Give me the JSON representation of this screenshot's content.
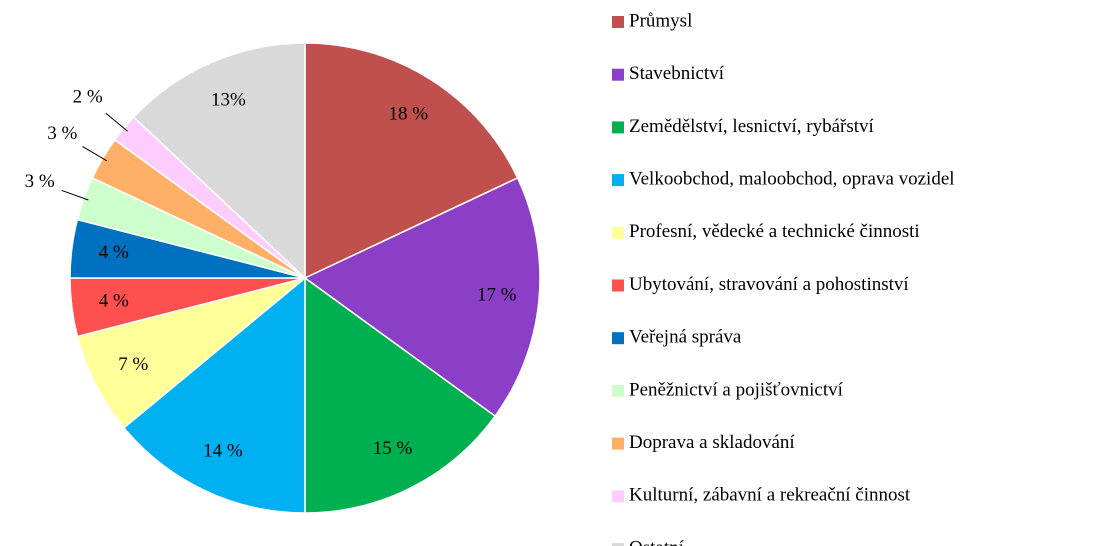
{
  "chart_data": {
    "type": "pie",
    "categories": [
      "Průmysl",
      "Stavebnictví",
      "Zemědělství, lesnictví, rybářství",
      "Velkoobchod, maloobchod, oprava vozidel",
      "Profesní, vědecké a technické činnosti",
      "Ubytování, stravování a pohostinství",
      "Veřejná správa",
      "Peněžnictví a pojišťovnictví",
      "Doprava a skladování",
      "Kulturní, zábavní a rekreační činnost",
      "Ostatní"
    ],
    "values": [
      18,
      17,
      15,
      14,
      7,
      4,
      4,
      3,
      3,
      2,
      13
    ],
    "value_labels": [
      "18 %",
      "17 %",
      "15 %",
      "14 %",
      "7 %",
      "4 %",
      "4 %",
      "3 %",
      "3 %",
      "2 %",
      "13%"
    ],
    "colors": [
      "#c0504d",
      "#8b3fc6",
      "#00b050",
      "#00b0f0",
      "#ffff99",
      "#ff5050",
      "#0070c0",
      "#ccffcc",
      "#ffb066",
      "#ffccff",
      "#d9d9d9"
    ],
    "legend": "right"
  }
}
